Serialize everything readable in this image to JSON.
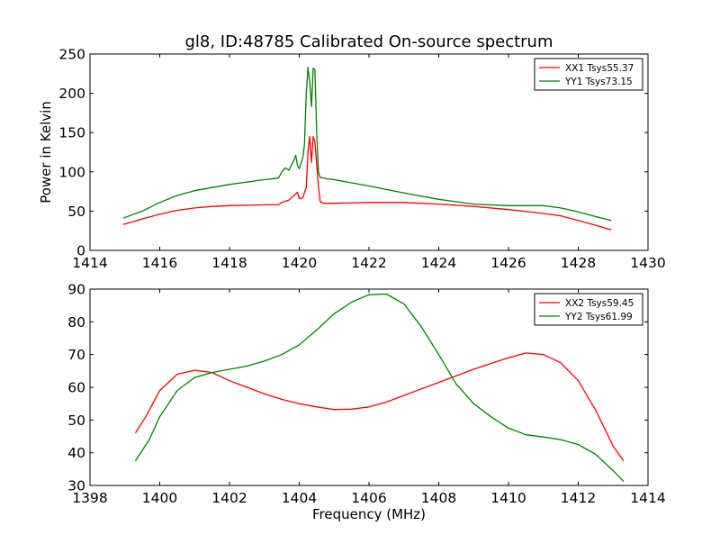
{
  "figure": {
    "title": "gl8, ID:48785 Calibrated On-source spectrum",
    "xlabel": "Frequency (MHz)",
    "top_ylabel": "Power in Kelvin"
  },
  "chart_data": [
    {
      "type": "line",
      "title": "gl8, ID:48785 Calibrated On-source spectrum",
      "xlabel": "",
      "ylabel": "Power in Kelvin",
      "xlim": [
        1414,
        1430
      ],
      "ylim": [
        0,
        250
      ],
      "xticks": [
        1414,
        1416,
        1418,
        1420,
        1422,
        1424,
        1426,
        1428,
        1430
      ],
      "yticks": [
        0,
        50,
        100,
        150,
        200,
        250
      ],
      "grid": false,
      "legend_position": "top-right",
      "series": [
        {
          "name": "XX1 Tsys55.37",
          "color": "#ff0000",
          "points": [
            [
              1414.95,
              33
            ],
            [
              1415.5,
              40
            ],
            [
              1416.0,
              46
            ],
            [
              1416.5,
              51
            ],
            [
              1417.0,
              54
            ],
            [
              1417.5,
              56
            ],
            [
              1418.0,
              57
            ],
            [
              1418.5,
              57.5
            ],
            [
              1419.0,
              58
            ],
            [
              1419.4,
              58
            ],
            [
              1419.5,
              61
            ],
            [
              1419.7,
              64
            ],
            [
              1419.9,
              72
            ],
            [
              1419.95,
              74
            ],
            [
              1420.0,
              66
            ],
            [
              1420.1,
              67
            ],
            [
              1420.2,
              80
            ],
            [
              1420.25,
              125
            ],
            [
              1420.3,
              145
            ],
            [
              1420.35,
              112
            ],
            [
              1420.4,
              145
            ],
            [
              1420.45,
              138
            ],
            [
              1420.55,
              82
            ],
            [
              1420.6,
              62
            ],
            [
              1420.7,
              60
            ],
            [
              1421.0,
              60
            ],
            [
              1422.0,
              61
            ],
            [
              1423.0,
              61
            ],
            [
              1424.0,
              59
            ],
            [
              1425.0,
              56
            ],
            [
              1426.0,
              52
            ],
            [
              1427.0,
              47
            ],
            [
              1427.5,
              44
            ],
            [
              1428.0,
              38
            ],
            [
              1428.5,
              32
            ],
            [
              1428.95,
              26
            ]
          ]
        },
        {
          "name": "YY1 Tsys73.15",
          "color": "#008000",
          "points": [
            [
              1414.95,
              41
            ],
            [
              1415.5,
              50
            ],
            [
              1416.0,
              61
            ],
            [
              1416.5,
              70
            ],
            [
              1417.0,
              76
            ],
            [
              1417.5,
              80
            ],
            [
              1418.0,
              84
            ],
            [
              1418.5,
              87
            ],
            [
              1419.0,
              90
            ],
            [
              1419.4,
              92
            ],
            [
              1419.5,
              100
            ],
            [
              1419.6,
              105
            ],
            [
              1419.7,
              102
            ],
            [
              1419.85,
              115
            ],
            [
              1419.9,
              121
            ],
            [
              1419.95,
              108
            ],
            [
              1420.0,
              104
            ],
            [
              1420.1,
              118
            ],
            [
              1420.15,
              135
            ],
            [
              1420.2,
              200
            ],
            [
              1420.25,
              233
            ],
            [
              1420.3,
              215
            ],
            [
              1420.35,
              183
            ],
            [
              1420.4,
              232
            ],
            [
              1420.45,
              230
            ],
            [
              1420.5,
              150
            ],
            [
              1420.55,
              100
            ],
            [
              1420.6,
              93
            ],
            [
              1420.8,
              91
            ],
            [
              1421.0,
              90
            ],
            [
              1422.0,
              82
            ],
            [
              1423.0,
              73
            ],
            [
              1424.0,
              65
            ],
            [
              1425.0,
              59
            ],
            [
              1426.0,
              57
            ],
            [
              1427.0,
              57
            ],
            [
              1427.5,
              54
            ],
            [
              1428.0,
              49
            ],
            [
              1428.5,
              43
            ],
            [
              1428.95,
              38
            ]
          ]
        }
      ]
    },
    {
      "type": "line",
      "title": "",
      "xlabel": "Frequency (MHz)",
      "ylabel": "",
      "xlim": [
        1398,
        1414
      ],
      "ylim": [
        30,
        90
      ],
      "xticks": [
        1398,
        1400,
        1402,
        1404,
        1406,
        1408,
        1410,
        1412,
        1414
      ],
      "yticks": [
        30,
        40,
        50,
        60,
        70,
        80,
        90
      ],
      "grid": false,
      "legend_position": "top-right",
      "series": [
        {
          "name": "XX2 Tsys59.45",
          "color": "#ff0000",
          "points": [
            [
              1399.3,
              46
            ],
            [
              1399.6,
              51
            ],
            [
              1400.0,
              59
            ],
            [
              1400.5,
              64
            ],
            [
              1401.0,
              65.2
            ],
            [
              1401.5,
              64.5
            ],
            [
              1402.0,
              62
            ],
            [
              1402.5,
              60
            ],
            [
              1403.0,
              58
            ],
            [
              1403.5,
              56.3
            ],
            [
              1404.0,
              55
            ],
            [
              1404.5,
              54
            ],
            [
              1405.0,
              53.2
            ],
            [
              1405.5,
              53.3
            ],
            [
              1406.0,
              54
            ],
            [
              1406.5,
              55.5
            ],
            [
              1407.0,
              57.5
            ],
            [
              1407.5,
              59.5
            ],
            [
              1408.0,
              61.5
            ],
            [
              1408.5,
              63.5
            ],
            [
              1409.0,
              65.5
            ],
            [
              1409.5,
              67.3
            ],
            [
              1410.0,
              69
            ],
            [
              1410.5,
              70.5
            ],
            [
              1411.0,
              70
            ],
            [
              1411.5,
              67.5
            ],
            [
              1412.0,
              62
            ],
            [
              1412.5,
              53
            ],
            [
              1413.0,
              42
            ],
            [
              1413.3,
              37.5
            ]
          ]
        },
        {
          "name": "YY2 Tsys61.99",
          "color": "#008000",
          "points": [
            [
              1399.3,
              37.5
            ],
            [
              1399.7,
              44
            ],
            [
              1400.0,
              51
            ],
            [
              1400.5,
              59
            ],
            [
              1401.0,
              63
            ],
            [
              1401.5,
              64.5
            ],
            [
              1402.0,
              65.5
            ],
            [
              1402.5,
              66.5
            ],
            [
              1403.0,
              68
            ],
            [
              1403.5,
              70
            ],
            [
              1404.0,
              73
            ],
            [
              1404.5,
              77.5
            ],
            [
              1405.0,
              82.5
            ],
            [
              1405.5,
              86
            ],
            [
              1406.0,
              88.3
            ],
            [
              1406.5,
              88.5
            ],
            [
              1407.0,
              85.5
            ],
            [
              1407.5,
              78.5
            ],
            [
              1408.0,
              70
            ],
            [
              1408.5,
              61
            ],
            [
              1409.0,
              55
            ],
            [
              1409.5,
              51
            ],
            [
              1410.0,
              47.5
            ],
            [
              1410.5,
              45.5
            ],
            [
              1411.0,
              44.8
            ],
            [
              1411.5,
              44
            ],
            [
              1412.0,
              42.5
            ],
            [
              1412.5,
              39.5
            ],
            [
              1413.0,
              34.5
            ],
            [
              1413.3,
              31.2
            ]
          ]
        }
      ]
    }
  ]
}
